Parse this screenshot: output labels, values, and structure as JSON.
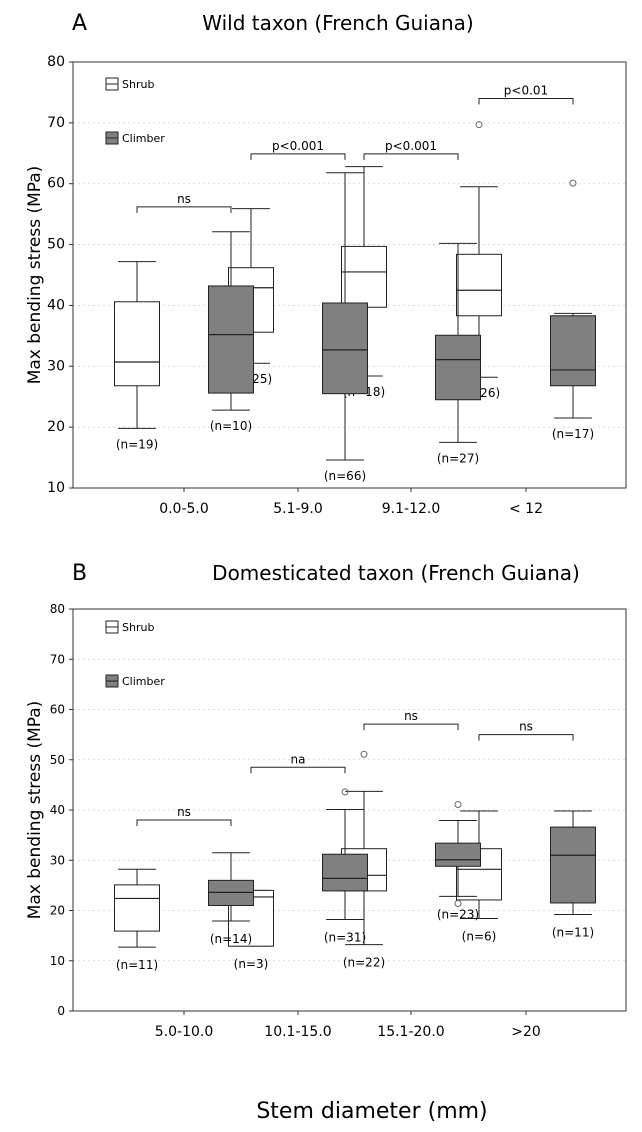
{
  "figure": {
    "xlabel": "Stem diameter (mm)"
  },
  "chart_data": [
    {
      "type": "box",
      "panel_letter": "A",
      "title": "Wild taxon  (French Guiana)",
      "ylabel": "Max bending stress (MPa)",
      "ylim": [
        10,
        80
      ],
      "yticks": [
        10,
        20,
        30,
        40,
        50,
        60,
        70,
        80
      ],
      "grid": "horizontal dashed",
      "legend": {
        "position": "top-left",
        "entries": [
          {
            "name": "Shrub",
            "color": "#ffffff"
          },
          {
            "name": "Climber",
            "color": "#808080"
          }
        ]
      },
      "categories": [
        "0.0-5.0",
        "5.1-9.0",
        "9.1-12.0",
        "< 12"
      ],
      "series": [
        {
          "name": "Shrub",
          "color": "#ffffff",
          "boxes": [
            {
              "min": 19.8,
              "q1": 26.8,
              "median": 30.7,
              "q3": 40.6,
              "max": 47.2,
              "n_label": "(n=19)",
              "outliers": []
            },
            {
              "min": 30.5,
              "q1": 35.6,
              "median": 42.9,
              "q3": 46.2,
              "max": 55.9,
              "n_label": "(n=25)",
              "outliers": []
            },
            {
              "min": 28.4,
              "q1": 39.7,
              "median": 45.5,
              "q3": 49.7,
              "max": 62.8,
              "n_label": "(n=18)",
              "outliers": []
            },
            {
              "min": 28.2,
              "q1": 38.3,
              "median": 42.5,
              "q3": 48.4,
              "max": 59.5,
              "n_label": "(n=26)",
              "outliers": [
                69.7
              ]
            }
          ]
        },
        {
          "name": "Climber",
          "color": "#808080",
          "boxes": [
            {
              "min": 22.8,
              "q1": 25.6,
              "median": 35.2,
              "q3": 43.2,
              "max": 52.1,
              "n_label": "(n=10)",
              "outliers": []
            },
            {
              "min": 14.6,
              "q1": 25.5,
              "median": 32.7,
              "q3": 40.4,
              "max": 61.8,
              "n_label": "(n=66)",
              "outliers": []
            },
            {
              "min": 17.5,
              "q1": 24.5,
              "median": 31.1,
              "q3": 35.1,
              "max": 50.2,
              "n_label": "(n=27)",
              "outliers": []
            },
            {
              "min": 21.5,
              "q1": 26.8,
              "median": 29.4,
              "q3": 38.3,
              "max": 38.7,
              "n_label": "(n=17)",
              "outliers": [
                60.1
              ]
            }
          ]
        }
      ],
      "annotations": [
        {
          "text": "ns",
          "y": 56.2
        },
        {
          "text": "p<0.001",
          "y": 64.9
        },
        {
          "text": "p<0.001",
          "y": 64.9
        },
        {
          "text": "p<0.01",
          "y": 74.0
        }
      ]
    },
    {
      "type": "box",
      "panel_letter": "B",
      "title": "Domesticated taxon (French Guiana)",
      "ylabel": "Max bending stress (MPa)",
      "ylim": [
        0,
        80
      ],
      "yticks": [
        0,
        10,
        20,
        30,
        40,
        50,
        60,
        70,
        80
      ],
      "grid": "horizontal dashed",
      "legend": {
        "position": "top-left",
        "entries": [
          {
            "name": "Shrub",
            "color": "#ffffff"
          },
          {
            "name": "Climber",
            "color": "#808080"
          }
        ]
      },
      "categories": [
        "5.0-10.0",
        "10.1-15.0",
        "15.1-20.0",
        ">20"
      ],
      "series": [
        {
          "name": "Shrub",
          "color": "#ffffff",
          "boxes": [
            {
              "min": 12.7,
              "q1": 15.9,
              "median": 22.4,
              "q3": 25.1,
              "max": 28.2,
              "n_label": "(n=11)",
              "outliers": []
            },
            {
              "min": 12.9,
              "q1": 12.9,
              "median": 22.7,
              "q3": 24.0,
              "max": 24.0,
              "n_label": "(n=3)",
              "outliers": []
            },
            {
              "min": 13.2,
              "q1": 23.9,
              "median": 27.0,
              "q3": 32.3,
              "max": 43.7,
              "n_label": "(n=22)",
              "outliers": [
                51.1
              ]
            },
            {
              "min": 18.4,
              "q1": 22.1,
              "median": 28.2,
              "q3": 32.3,
              "max": 39.8,
              "n_label": "(n=6)",
              "outliers": []
            }
          ]
        },
        {
          "name": "Climber",
          "color": "#808080",
          "boxes": [
            {
              "min": 17.9,
              "q1": 21.0,
              "median": 23.6,
              "q3": 26.0,
              "max": 31.5,
              "n_label": "(n=14)",
              "outliers": []
            },
            {
              "min": 18.2,
              "q1": 23.9,
              "median": 26.4,
              "q3": 31.2,
              "max": 40.1,
              "n_label": "(n=31)",
              "outliers": [
                43.6
              ]
            },
            {
              "min": 22.8,
              "q1": 28.8,
              "median": 30.1,
              "q3": 33.4,
              "max": 37.9,
              "n_label": "(n=23)",
              "outliers": [
                41.1,
                21.4
              ]
            },
            {
              "min": 19.2,
              "q1": 21.5,
              "median": 31.0,
              "q3": 36.6,
              "max": 39.8,
              "n_label": "(n=11)",
              "outliers": []
            }
          ]
        }
      ],
      "annotations": [
        {
          "text": "ns",
          "y": 38.0
        },
        {
          "text": "na",
          "y": 48.5
        },
        {
          "text": "ns",
          "y": 57.1
        },
        {
          "text": "ns",
          "y": 55.0
        }
      ]
    }
  ]
}
